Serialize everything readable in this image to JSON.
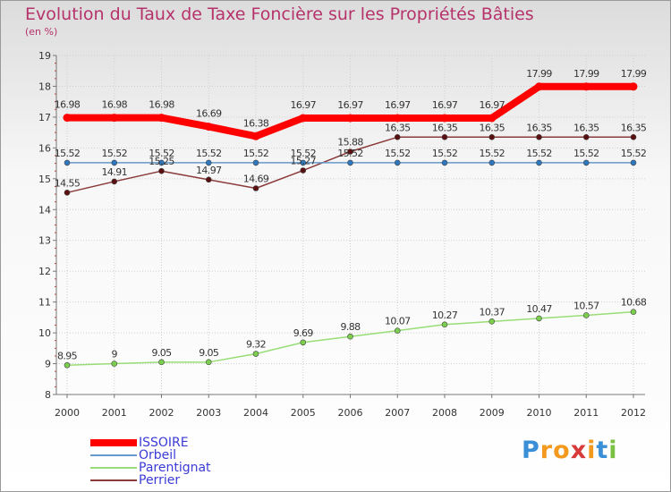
{
  "header": {
    "title": "Evolution du Taux de Taxe Foncière sur les Propriétés Bâties",
    "unit": "(en %)"
  },
  "chart_data": {
    "type": "line",
    "title": "Evolution du Taux de Taxe Foncière sur les Propriétés Bâties",
    "ylabel": "(en %)",
    "xlabel": "",
    "x": [
      "2000",
      "2001",
      "2002",
      "2003",
      "2004",
      "2005",
      "2006",
      "2007",
      "2008",
      "2009",
      "2010",
      "2011",
      "2012"
    ],
    "ylim": [
      8,
      19
    ],
    "yticks": [
      "8",
      "9",
      "10",
      "11",
      "12",
      "13",
      "14",
      "15",
      "16",
      "17",
      "18",
      "19"
    ],
    "grid": true,
    "legend_position": "bottom-left",
    "series": [
      {
        "name": "ISSOIRE",
        "color": "#ff0000",
        "values": [
          16.98,
          16.98,
          16.98,
          16.69,
          16.38,
          16.97,
          16.97,
          16.97,
          16.97,
          16.97,
          17.99,
          17.99,
          17.99
        ],
        "labels": [
          "16.98",
          "16.98",
          "16.98",
          "16.69",
          "16.38",
          "16.97",
          "16.97",
          "16.97",
          "16.97",
          "16.97",
          "17.99",
          "17.99",
          "17.99"
        ]
      },
      {
        "name": "Orbeil",
        "color": "#6699cc",
        "values": [
          15.52,
          15.52,
          15.52,
          15.52,
          15.52,
          15.52,
          15.52,
          15.52,
          15.52,
          15.52,
          15.52,
          15.52,
          15.52
        ],
        "labels": [
          "15.52",
          "15.52",
          "15.52",
          "15.52",
          "15.52",
          "15.52",
          "15.52",
          "15.52",
          "15.52",
          "15.52",
          "15.52",
          "15.52",
          "15.52"
        ]
      },
      {
        "name": "Parentignat",
        "color": "#99dd77",
        "values": [
          8.95,
          9,
          9.05,
          9.05,
          9.32,
          9.69,
          9.88,
          10.07,
          10.27,
          10.37,
          10.47,
          10.57,
          10.68
        ],
        "labels": [
          "8.95",
          "9",
          "9.05",
          "9.05",
          "9.32",
          "9.69",
          "9.88",
          "10.07",
          "10.27",
          "10.37",
          "10.47",
          "10.57",
          "10.68"
        ]
      },
      {
        "name": "Perrier",
        "color": "#8b3a3a",
        "values": [
          14.55,
          14.91,
          15.25,
          14.97,
          14.69,
          15.27,
          15.88,
          16.35,
          16.35,
          16.35,
          16.35,
          16.35,
          16.35
        ],
        "labels": [
          "14.55",
          "14.91",
          "15.25",
          "14.97",
          "14.69",
          "15.27",
          "15.88",
          "16.35",
          "16.35",
          "16.35",
          "16.35",
          "16.35",
          "16.35"
        ]
      }
    ]
  },
  "legend": {
    "items": [
      "ISSOIRE",
      "Orbeil",
      "Parentignat",
      "Perrier"
    ]
  },
  "logo": {
    "text": "Proxiti",
    "letters": [
      "P",
      "r",
      "o",
      "x",
      "i",
      "t",
      "i"
    ],
    "colors": [
      "#3a8fd6",
      "#f39a1e",
      "#f39a1e",
      "#d63a3a",
      "#f39a1e",
      "#3a8fd6",
      "#7ac043"
    ]
  }
}
